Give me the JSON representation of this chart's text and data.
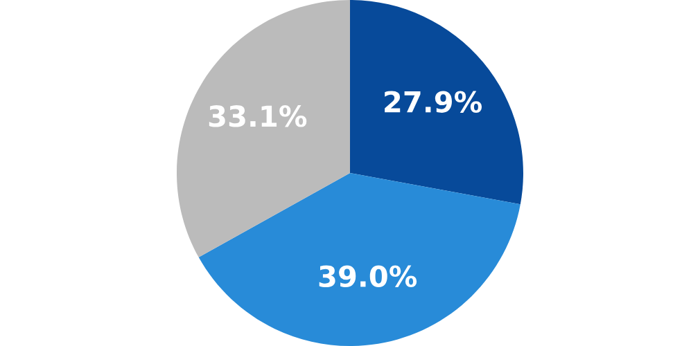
{
  "chart_data": {
    "type": "pie",
    "categories": [
      null,
      null,
      null
    ],
    "values": [
      27.9,
      39.0,
      33.1
    ],
    "colors": [
      "#074a9a",
      "#288bd8",
      "#bbbbbb"
    ],
    "value_labels": [
      "27.9%",
      "39.0%",
      "33.1%"
    ]
  }
}
